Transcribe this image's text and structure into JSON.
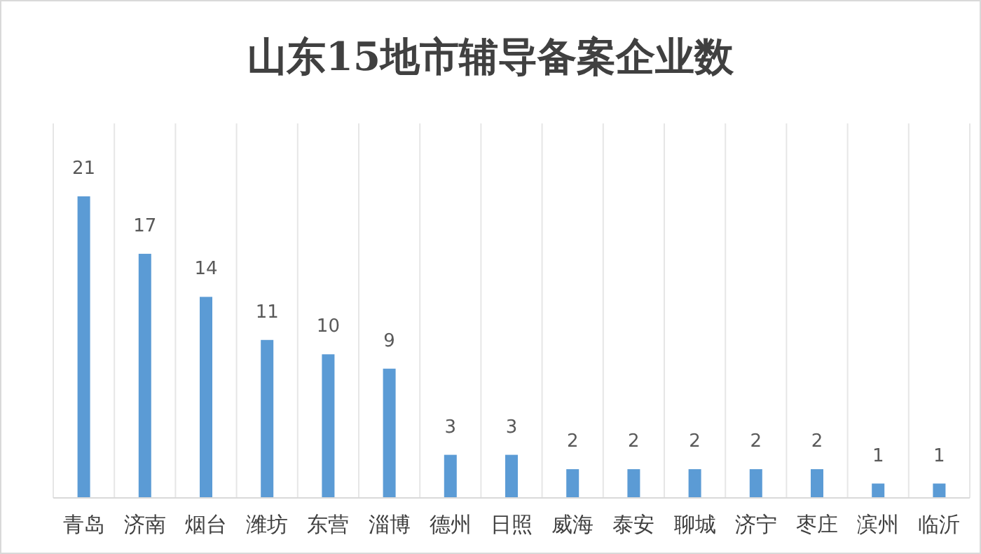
{
  "chart_data": {
    "type": "bar",
    "title": "山东15地市辅导备案企业数",
    "categories": [
      "青岛",
      "济南",
      "烟台",
      "潍坊",
      "东营",
      "淄博",
      "德州",
      "日照",
      "威海",
      "泰安",
      "聊城",
      "济宁",
      "枣庄",
      "滨州",
      "临沂"
    ],
    "values": [
      21,
      17,
      14,
      11,
      10,
      9,
      3,
      3,
      2,
      2,
      2,
      2,
      2,
      1,
      1
    ],
    "color": "#5b9bd5",
    "data_labels": true,
    "grid": "x"
  }
}
